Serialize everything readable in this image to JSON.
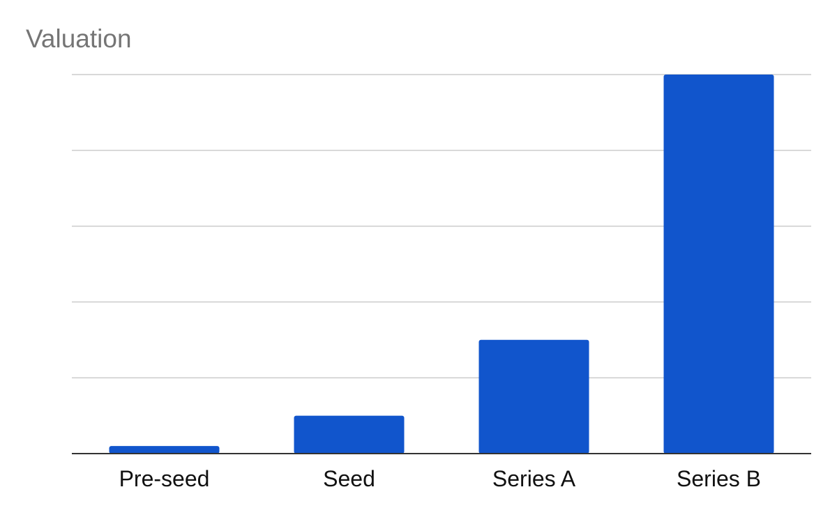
{
  "chart_data": {
    "type": "bar",
    "title": "Valuation",
    "xlabel": "",
    "ylabel": "",
    "categories": [
      "Pre-seed",
      "Seed",
      "Series A",
      "Series B"
    ],
    "values": [
      2,
      10,
      30,
      100
    ],
    "ylim": [
      0,
      100
    ],
    "grid": true,
    "gridline_count": 5,
    "legend": "none",
    "colors": {
      "bar": "#1155cc",
      "grid": "#cccccc",
      "axis": "#333333",
      "title": "#757575",
      "tick_label": "#111111"
    }
  }
}
